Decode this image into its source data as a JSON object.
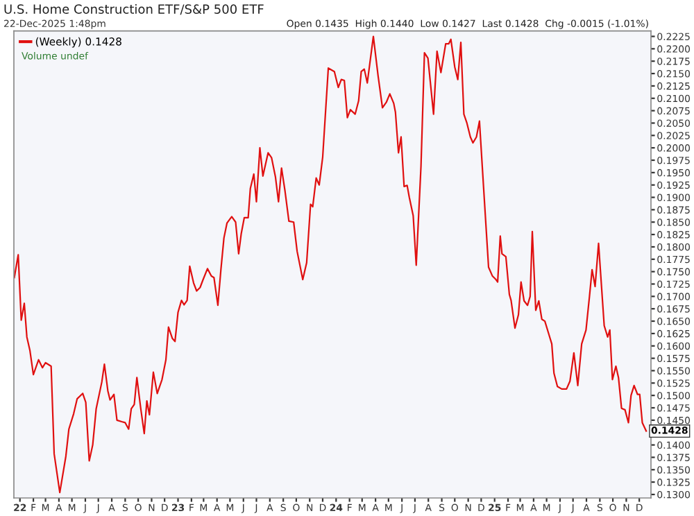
{
  "chart_data": {
    "type": "line",
    "title": "U.S. Home Construction ETF/S&P 500 ETF",
    "subtitle": "22-Dec-2025 1:48pm",
    "annotations": [
      "Open 0.1435  High 0.1440  Low 0.1427  Last 0.1428  Chg -0.0015 (-1.01%)",
      "Volume undef",
      {
        "text": "0.1428",
        "x": "2025-12-17",
        "y": 0.1428
      }
    ],
    "x": [
      "2021-12-19",
      "2021-12-28",
      "2022-01-04",
      "2022-01-11",
      "2022-01-17",
      "2022-01-24",
      "2022-02-01",
      "2022-02-13",
      "2022-02-22",
      "2022-03-01",
      "2022-03-14",
      "2022-03-21",
      "2022-04-03",
      "2022-04-17",
      "2022-04-24",
      "2022-05-05",
      "2022-05-13",
      "2022-05-26",
      "2022-06-02",
      "2022-06-10",
      "2022-06-18",
      "2022-06-26",
      "2022-07-09",
      "2022-07-15",
      "2022-07-23",
      "2022-07-28",
      "2022-08-06",
      "2022-08-13",
      "2022-08-24",
      "2022-09-01",
      "2022-09-09",
      "2022-09-15",
      "2022-09-22",
      "2022-09-28",
      "2022-10-07",
      "2022-10-15",
      "2022-10-21",
      "2022-10-27",
      "2022-11-05",
      "2022-11-14",
      "2022-11-25",
      "2022-12-04",
      "2022-12-10",
      "2022-12-19",
      "2022-12-25",
      "2023-01-01",
      "2023-01-09",
      "2023-01-15",
      "2023-01-22",
      "2023-01-28",
      "2023-02-06",
      "2023-02-13",
      "2023-02-21",
      "2023-02-27",
      "2023-03-10",
      "2023-03-19",
      "2023-03-25",
      "2023-04-03",
      "2023-04-10",
      "2023-04-17",
      "2023-04-24",
      "2023-05-05",
      "2023-05-14",
      "2023-05-21",
      "2023-05-27",
      "2023-06-03",
      "2023-06-12",
      "2023-06-17",
      "2023-06-25",
      "2023-07-01",
      "2023-07-09",
      "2023-07-16",
      "2023-07-28",
      "2023-08-05",
      "2023-08-14",
      "2023-08-21",
      "2023-08-28",
      "2023-09-05",
      "2023-09-14",
      "2023-09-25",
      "2023-10-03",
      "2023-10-16",
      "2023-10-25",
      "2023-11-03",
      "2023-11-08",
      "2023-11-16",
      "2023-11-23",
      "2023-12-01",
      "2023-12-14",
      "2023-12-28",
      "2024-01-06",
      "2024-01-13",
      "2024-01-20",
      "2024-01-27",
      "2024-02-03",
      "2024-02-14",
      "2024-02-22",
      "2024-02-28",
      "2024-03-06",
      "2024-03-13",
      "2024-03-27",
      "2024-04-07",
      "2024-04-17",
      "2024-04-26",
      "2024-05-04",
      "2024-05-13",
      "2024-05-17",
      "2024-05-24",
      "2024-05-30",
      "2024-06-06",
      "2024-06-13",
      "2024-06-18",
      "2024-06-27",
      "2024-07-04",
      "2024-07-15",
      "2024-07-23",
      "2024-07-31",
      "2024-08-13",
      "2024-08-21",
      "2024-08-30",
      "2024-09-10",
      "2024-09-17",
      "2024-09-22",
      "2024-10-01",
      "2024-10-08",
      "2024-10-15",
      "2024-10-22",
      "2024-10-29",
      "2024-11-06",
      "2024-11-12",
      "2024-11-20",
      "2024-11-27",
      "2024-12-06",
      "2024-12-18",
      "2024-12-27",
      "2025-01-04",
      "2025-01-08",
      "2025-01-14",
      "2025-01-18",
      "2025-01-27",
      "2025-02-04",
      "2025-02-08",
      "2025-02-17",
      "2025-02-25",
      "2025-03-03",
      "2025-03-10",
      "2025-03-18",
      "2025-03-24",
      "2025-03-29",
      "2025-04-06",
      "2025-04-13",
      "2025-04-20",
      "2025-04-27",
      "2025-05-05",
      "2025-05-13",
      "2025-05-18",
      "2025-05-26",
      "2025-06-05",
      "2025-06-16",
      "2025-06-24",
      "2025-07-03",
      "2025-07-12",
      "2025-07-21",
      "2025-07-31",
      "2025-08-08",
      "2025-08-14",
      "2025-08-21",
      "2025-08-29",
      "2025-09-11",
      "2025-09-19",
      "2025-09-24",
      "2025-09-30",
      "2025-10-08",
      "2025-10-14",
      "2025-10-21",
      "2025-10-29",
      "2025-11-06",
      "2025-11-12",
      "2025-11-19",
      "2025-11-27",
      "2025-12-02",
      "2025-12-08",
      "2025-12-17"
    ],
    "series": [
      {
        "name": "(Weekly) 0.1428",
        "color": "#e01010",
        "values": [
          0.1738,
          0.1784,
          0.1652,
          0.1686,
          0.1618,
          0.1591,
          0.1542,
          0.1572,
          0.1556,
          0.1566,
          0.1559,
          0.1382,
          0.1304,
          0.1377,
          0.1432,
          0.1463,
          0.1493,
          0.1504,
          0.1486,
          0.1368,
          0.14,
          0.1473,
          0.1527,
          0.1563,
          0.1509,
          0.1491,
          0.1502,
          0.145,
          0.1447,
          0.1445,
          0.1432,
          0.1473,
          0.1482,
          0.1536,
          0.1473,
          0.1423,
          0.1489,
          0.1461,
          0.1547,
          0.1504,
          0.1532,
          0.1572,
          0.1638,
          0.1615,
          0.1609,
          0.1668,
          0.1692,
          0.1683,
          0.1692,
          0.1761,
          0.1727,
          0.1711,
          0.1718,
          0.1732,
          0.1756,
          0.1741,
          0.1738,
          0.1682,
          0.1754,
          0.1818,
          0.1848,
          0.1861,
          0.185,
          0.1786,
          0.1827,
          0.1859,
          0.1859,
          0.1918,
          0.1947,
          0.1891,
          0.2,
          0.1943,
          0.199,
          0.198,
          0.1941,
          0.1891,
          0.1959,
          0.1913,
          0.1852,
          0.185,
          0.1791,
          0.1734,
          0.1768,
          0.1886,
          0.1881,
          0.1939,
          0.1925,
          0.1981,
          0.2161,
          0.2154,
          0.2122,
          0.2138,
          0.2136,
          0.2061,
          0.2077,
          0.2068,
          0.2095,
          0.2154,
          0.2159,
          0.2131,
          0.2225,
          0.2145,
          0.2081,
          0.2092,
          0.2109,
          0.209,
          0.2072,
          0.199,
          0.2022,
          0.1922,
          0.1924,
          0.19,
          0.1863,
          0.1763,
          0.1963,
          0.2192,
          0.2181,
          0.2068,
          0.2195,
          0.2152,
          0.221,
          0.221,
          0.2219,
          0.2163,
          0.2138,
          0.2213,
          0.2068,
          0.205,
          0.2022,
          0.201,
          0.2022,
          0.2054,
          0.1927,
          0.1759,
          0.1741,
          0.1734,
          0.1729,
          0.1822,
          0.1786,
          0.178,
          0.1704,
          0.1692,
          0.1636,
          0.1663,
          0.1729,
          0.1691,
          0.1682,
          0.17,
          0.1831,
          0.1672,
          0.1691,
          0.1654,
          0.165,
          0.1627,
          0.1604,
          0.1545,
          0.1518,
          0.1513,
          0.1513,
          0.1529,
          0.1586,
          0.152,
          0.1604,
          0.1632,
          0.17,
          0.1754,
          0.172,
          0.1807,
          0.1641,
          0.1618,
          0.1632,
          0.1532,
          0.1559,
          0.1536,
          0.1474,
          0.1471,
          0.1445,
          0.15,
          0.152,
          0.1502,
          0.1502,
          0.1445,
          0.1428
        ]
      }
    ],
    "xlim": [
      "2021-12-18",
      "2025-12-28"
    ],
    "xticks": [
      {
        "value": "2022-01-01",
        "label": "22"
      },
      {
        "value": "2022-02-01",
        "label": "F"
      },
      {
        "value": "2022-03-01",
        "label": "M"
      },
      {
        "value": "2022-04-01",
        "label": "A"
      },
      {
        "value": "2022-05-01",
        "label": "M"
      },
      {
        "value": "2022-06-01",
        "label": "J"
      },
      {
        "value": "2022-07-01",
        "label": "J"
      },
      {
        "value": "2022-08-01",
        "label": "A"
      },
      {
        "value": "2022-09-01",
        "label": "S"
      },
      {
        "value": "2022-10-01",
        "label": "O"
      },
      {
        "value": "2022-11-01",
        "label": "N"
      },
      {
        "value": "2022-12-01",
        "label": "D"
      },
      {
        "value": "2023-01-01",
        "label": "23"
      },
      {
        "value": "2023-02-01",
        "label": "F"
      },
      {
        "value": "2023-03-01",
        "label": "M"
      },
      {
        "value": "2023-04-01",
        "label": "A"
      },
      {
        "value": "2023-05-01",
        "label": "M"
      },
      {
        "value": "2023-06-01",
        "label": "J"
      },
      {
        "value": "2023-07-01",
        "label": "J"
      },
      {
        "value": "2023-08-01",
        "label": "A"
      },
      {
        "value": "2023-09-01",
        "label": "S"
      },
      {
        "value": "2023-10-01",
        "label": "O"
      },
      {
        "value": "2023-11-01",
        "label": "N"
      },
      {
        "value": "2023-12-01",
        "label": "D"
      },
      {
        "value": "2024-01-01",
        "label": "24"
      },
      {
        "value": "2024-02-01",
        "label": "F"
      },
      {
        "value": "2024-03-01",
        "label": "M"
      },
      {
        "value": "2024-04-01",
        "label": "A"
      },
      {
        "value": "2024-05-01",
        "label": "M"
      },
      {
        "value": "2024-06-01",
        "label": "J"
      },
      {
        "value": "2024-07-01",
        "label": "J"
      },
      {
        "value": "2024-08-01",
        "label": "A"
      },
      {
        "value": "2024-09-01",
        "label": "S"
      },
      {
        "value": "2024-10-01",
        "label": "O"
      },
      {
        "value": "2024-11-01",
        "label": "N"
      },
      {
        "value": "2024-12-01",
        "label": "D"
      },
      {
        "value": "2025-01-01",
        "label": "25"
      },
      {
        "value": "2025-02-01",
        "label": "F"
      },
      {
        "value": "2025-03-01",
        "label": "M"
      },
      {
        "value": "2025-04-01",
        "label": "A"
      },
      {
        "value": "2025-05-01",
        "label": "M"
      },
      {
        "value": "2025-06-01",
        "label": "J"
      },
      {
        "value": "2025-07-01",
        "label": "J"
      },
      {
        "value": "2025-08-01",
        "label": "A"
      },
      {
        "value": "2025-09-01",
        "label": "S"
      },
      {
        "value": "2025-10-01",
        "label": "O"
      },
      {
        "value": "2025-11-01",
        "label": "N"
      },
      {
        "value": "2025-12-01",
        "label": "D"
      }
    ],
    "ylim": [
      0.1293,
      0.2236
    ],
    "yticks": [
      {
        "value": 0.13,
        "label": "0.1300"
      },
      {
        "value": 0.1325,
        "label": "0.1325"
      },
      {
        "value": 0.135,
        "label": "0.1350"
      },
      {
        "value": 0.1375,
        "label": "0.1375"
      },
      {
        "value": 0.14,
        "label": "0.1400"
      },
      {
        "value": 0.145,
        "label": "0.1450"
      },
      {
        "value": 0.1475,
        "label": "0.1475"
      },
      {
        "value": 0.15,
        "label": "0.1500"
      },
      {
        "value": 0.1525,
        "label": "0.1525"
      },
      {
        "value": 0.155,
        "label": "0.1550"
      },
      {
        "value": 0.1575,
        "label": "0.1575"
      },
      {
        "value": 0.16,
        "label": "0.1600"
      },
      {
        "value": 0.1625,
        "label": "0.1625"
      },
      {
        "value": 0.165,
        "label": "0.1650"
      },
      {
        "value": 0.1675,
        "label": "0.1675"
      },
      {
        "value": 0.17,
        "label": "0.1700"
      },
      {
        "value": 0.1725,
        "label": "0.1725"
      },
      {
        "value": 0.175,
        "label": "0.1750"
      },
      {
        "value": 0.1775,
        "label": "0.1775"
      },
      {
        "value": 0.18,
        "label": "0.1800"
      },
      {
        "value": 0.1825,
        "label": "0.1825"
      },
      {
        "value": 0.185,
        "label": "0.1850"
      },
      {
        "value": 0.1875,
        "label": "0.1875"
      },
      {
        "value": 0.19,
        "label": "0.1900"
      },
      {
        "value": 0.1925,
        "label": "0.1925"
      },
      {
        "value": 0.195,
        "label": "0.1950"
      },
      {
        "value": 0.1975,
        "label": "0.1975"
      },
      {
        "value": 0.2,
        "label": "0.2000"
      },
      {
        "value": 0.2025,
        "label": "0.2025"
      },
      {
        "value": 0.205,
        "label": "0.2050"
      },
      {
        "value": 0.2075,
        "label": "0.2075"
      },
      {
        "value": 0.21,
        "label": "0.2100"
      },
      {
        "value": 0.2125,
        "label": "0.2125"
      },
      {
        "value": 0.215,
        "label": "0.2150"
      },
      {
        "value": 0.2175,
        "label": "0.2175"
      },
      {
        "value": 0.22,
        "label": "0.2200"
      },
      {
        "value": 0.2225,
        "label": "0.2225"
      }
    ],
    "grid": false,
    "legend": "top left"
  }
}
